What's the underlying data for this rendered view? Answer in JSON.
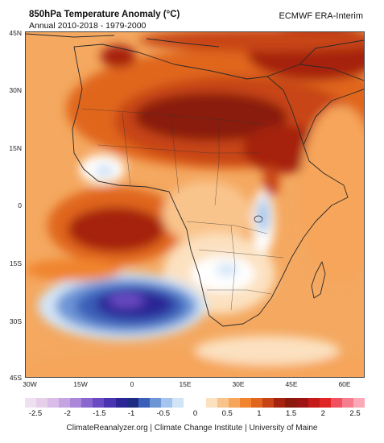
{
  "header": {
    "title": "850hPa Temperature Anomaly (°C)",
    "subtitle": "Annual 2010-2018 - 1979-2000",
    "source": "ECMWF ERA-Interim"
  },
  "map": {
    "region": "Africa",
    "lat_labels": [
      "45N",
      "30N",
      "15N",
      "0",
      "15S",
      "30S",
      "45S"
    ],
    "lon_labels": [
      "30W",
      "15W",
      "0",
      "15E",
      "30E",
      "45E",
      "60E"
    ],
    "lat_range": [
      -45,
      45
    ],
    "lon_range": [
      -30,
      68
    ],
    "features": [
      {
        "name": "strong warm anomaly",
        "area": "Sahara / Sahel / Arabia",
        "anomaly": "1 to 1.5"
      },
      {
        "name": "warm anomaly core",
        "area": "Gulf of Guinea offshore",
        "anomaly": "1"
      },
      {
        "name": "cold anomaly",
        "area": "South Atlantic",
        "anomaly": "-1.5"
      },
      {
        "name": "near-zero anomaly",
        "area": "East African highlands",
        "anomaly": "-0.5 to 0"
      },
      {
        "name": "near-zero anomaly",
        "area": "Southern Africa interior",
        "anomaly": "-0.5 to 0"
      }
    ]
  },
  "colorbar": {
    "ticks": [
      "-2.5",
      "-2",
      "-1.5",
      "-1",
      "-0.5",
      "0",
      "0.5",
      "1",
      "1.5",
      "2",
      "2.5"
    ],
    "colors": [
      "#efe0ef",
      "#e6cfe9",
      "#d9bde8",
      "#c6a4e2",
      "#ab87d9",
      "#8a67cf",
      "#6a4ac2",
      "#4a33b0",
      "#2a2696",
      "#1b2c82",
      "#3a5fb8",
      "#6d95d6",
      "#a3c4ec",
      "#d2e5f7",
      "#ffffff",
      "#ffffff",
      "#fce1c0",
      "#f9c48c",
      "#f6a55a",
      "#f0842f",
      "#e0661d",
      "#c74416",
      "#a6230f",
      "#8a1a0e",
      "#9e1414",
      "#c41a1a",
      "#e02624",
      "#f05060",
      "#f67d8d",
      "#fba9b6"
    ]
  },
  "footer": "ClimateReanalyzer.org | Climate Change Institute | University of Maine"
}
